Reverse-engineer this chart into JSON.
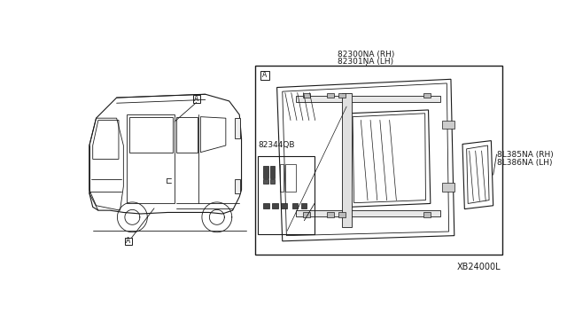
{
  "bg_color": "#ffffff",
  "line_color": "#1a1a1a",
  "label_color": "#1a1a1a",
  "part_labels": {
    "main_glass_rh": "82300NA (RH)",
    "main_glass_lh": "82301NA (LH)",
    "small_glass_rh": "8L385NA (RH)",
    "small_glass_lh": "8L386NA (LH)",
    "kit": "82344QB"
  },
  "callout_A": "A",
  "footer": "XB24000L"
}
